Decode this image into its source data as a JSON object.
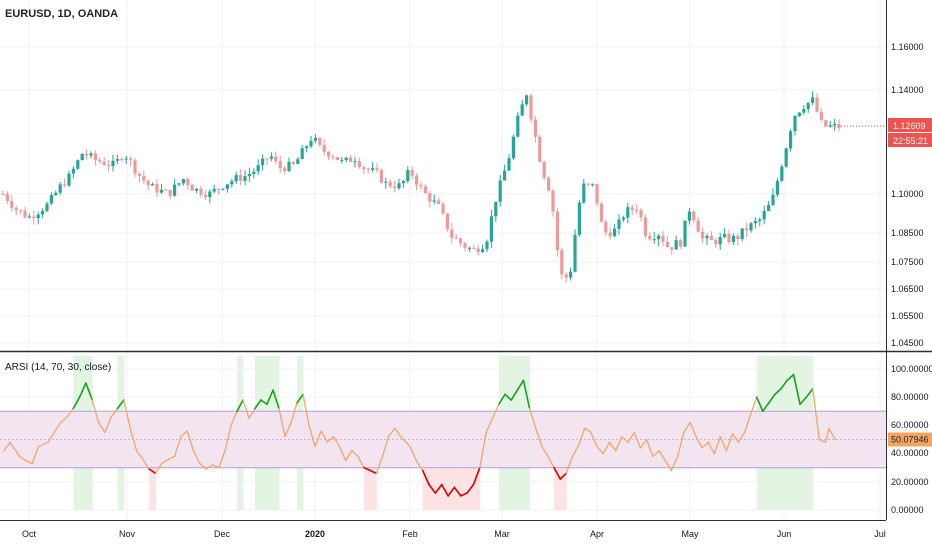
{
  "symbol_title": "EURUSD, 1D, OANDA",
  "indicator_title": "ARSI (14, 70, 30, close)",
  "colors": {
    "bull": "#26a69a",
    "bear": "#ef9a9a",
    "last_price_bg": "#ef5350",
    "arsi_line": "#f4a46b",
    "arsi_ob": "#17a317",
    "arsi_os": "#d50000",
    "arsi_value_bg": "#f4a460",
    "band_fill": "#f3e5ef",
    "ob_bg": "#e3f4e3",
    "os_bg": "#fde3e3"
  },
  "price_axis": {
    "labels": [
      "1.16000",
      "1.14000",
      "1.10000",
      "1.08500",
      "1.07500",
      "1.06500",
      "1.05500",
      "1.04500"
    ],
    "last_price": "1.12609",
    "countdown": "22:55:21"
  },
  "arsi_axis": {
    "labels": [
      "100.00000",
      "80.00000",
      "60.00000",
      "40.00000",
      "20.00000",
      "0.00000"
    ],
    "last_value": "50.07946"
  },
  "time_axis": [
    "Oct",
    "Nov",
    "Dec",
    "2020",
    "Feb",
    "Mar",
    "Apr",
    "May",
    "Jun",
    "Jul"
  ],
  "chart_data": [
    {
      "type": "candlestick",
      "title": "EURUSD, 1D, OANDA",
      "ylim": [
        1.043,
        1.166
      ],
      "y_ticks": [
        1.16,
        1.14,
        1.1,
        1.085,
        1.075,
        1.065,
        1.055,
        1.045
      ],
      "x_ticks": [
        "Oct",
        "Nov",
        "Dec",
        "2020",
        "Feb",
        "Mar",
        "Apr",
        "May",
        "Jun",
        "Jul"
      ],
      "close_path": [
        [
          "Sep 23",
          1.1
        ],
        [
          "Sep 27",
          1.094
        ],
        [
          "Oct 1",
          1.091
        ],
        [
          "Oct 7",
          1.096
        ],
        [
          "Oct 11",
          1.103
        ],
        [
          "Oct 14",
          1.107
        ],
        [
          "Oct 18",
          1.116
        ],
        [
          "Oct 22",
          1.113
        ],
        [
          "Oct 28",
          1.111
        ],
        [
          "Oct 31",
          1.116
        ],
        [
          "Nov 5",
          1.107
        ],
        [
          "Nov 8",
          1.103
        ],
        [
          "Nov 14",
          1.1
        ],
        [
          "Nov 19",
          1.106
        ],
        [
          "Nov 22",
          1.102
        ],
        [
          "Nov 27",
          1.1
        ],
        [
          "Dec 2",
          1.104
        ],
        [
          "Dec 6",
          1.106
        ],
        [
          "Dec 9",
          1.107
        ],
        [
          "Dec 13",
          1.11
        ],
        [
          "Dec 17",
          1.115
        ],
        [
          "Dec 20",
          1.11
        ],
        [
          "Dec 25",
          1.111
        ],
        [
          "Dec 31",
          1.122
        ],
        [
          "Jan 3",
          1.117
        ],
        [
          "Jan 7",
          1.115
        ],
        [
          "Jan 10",
          1.112
        ],
        [
          "Jan 14",
          1.114
        ],
        [
          "Jan 17",
          1.11
        ],
        [
          "Jan 21",
          1.108
        ],
        [
          "Jan 24",
          1.104
        ],
        [
          "Jan 29",
          1.103
        ],
        [
          "Feb 1",
          1.109
        ],
        [
          "Feb 5",
          1.101
        ],
        [
          "Feb 10",
          1.095
        ],
        [
          "Feb 14",
          1.084
        ],
        [
          "Feb 19",
          1.08
        ],
        [
          "Feb 21",
          1.079
        ],
        [
          "Feb 25",
          1.082
        ],
        [
          "Feb 28",
          1.098
        ],
        [
          "Mar 3",
          1.113
        ],
        [
          "Mar 6",
          1.128
        ],
        [
          "Mar 9",
          1.139
        ],
        [
          "Mar 11",
          1.127
        ],
        [
          "Mar 14",
          1.11
        ],
        [
          "Mar 17",
          1.1
        ],
        [
          "Mar 20",
          1.07
        ],
        [
          "Mar 23",
          1.069
        ],
        [
          "Mar 27",
          1.103
        ],
        [
          "Mar 31",
          1.103
        ],
        [
          "Apr 3",
          1.085
        ],
        [
          "Apr 7",
          1.086
        ],
        [
          "Apr 10",
          1.093
        ],
        [
          "Apr 14",
          1.095
        ],
        [
          "Apr 17",
          1.084
        ],
        [
          "Apr 21",
          1.085
        ],
        [
          "Apr 24",
          1.08
        ],
        [
          "Apr 28",
          1.082
        ],
        [
          "May 1",
          1.095
        ],
        [
          "May 5",
          1.083
        ],
        [
          "May 8",
          1.082
        ],
        [
          "May 12",
          1.083
        ],
        [
          "May 16",
          1.083
        ],
        [
          "May 20",
          1.087
        ],
        [
          "May 24",
          1.09
        ],
        [
          "May 28",
          1.097
        ],
        [
          "Jun 1",
          1.115
        ],
        [
          "Jun 4",
          1.13
        ],
        [
          "Jun 7",
          1.134
        ],
        [
          "Jun 10",
          1.136
        ],
        [
          "Jun 13",
          1.126
        ]
      ]
    },
    {
      "type": "line",
      "title": "ARSI (14, 70, 30, close)",
      "ylim": [
        -5,
        108
      ],
      "y_ticks": [
        100,
        80,
        60,
        40,
        20,
        0
      ],
      "bands": [
        70,
        50,
        30
      ],
      "overbought": 70,
      "oversold": 30,
      "series": [
        {
          "values": [
            [
              "Sep 23",
              42
            ],
            [
              "Sep 25",
              48
            ],
            [
              "Sep 28",
              38
            ],
            [
              "Sep 30",
              35
            ],
            [
              "Oct 2",
              33
            ],
            [
              "Oct 4",
              45
            ],
            [
              "Oct 7",
              48
            ],
            [
              "Oct 9",
              55
            ],
            [
              "Oct 11",
              62
            ],
            [
              "Oct 13",
              66
            ],
            [
              "Oct 15",
              72
            ],
            [
              "Oct 17",
              80
            ],
            [
              "Oct 19",
              90
            ],
            [
              "Oct 21",
              78
            ],
            [
              "Oct 23",
              62
            ],
            [
              "Oct 25",
              55
            ],
            [
              "Oct 27",
              66
            ],
            [
              "Oct 29",
              72
            ],
            [
              "Oct 31",
              78
            ],
            [
              "Nov 2",
              58
            ],
            [
              "Nov 4",
              42
            ],
            [
              "Nov 6",
              36
            ],
            [
              "Nov 8",
              29
            ],
            [
              "Nov 10",
              26
            ],
            [
              "Nov 12",
              33
            ],
            [
              "Nov 14",
              36
            ],
            [
              "Nov 16",
              38
            ],
            [
              "Nov 18",
              52
            ],
            [
              "Nov 20",
              56
            ],
            [
              "Nov 22",
              42
            ],
            [
              "Nov 24",
              33
            ],
            [
              "Nov 26",
              29
            ],
            [
              "Nov 28",
              32
            ],
            [
              "Nov 30",
              30
            ],
            [
              "Dec 2",
              42
            ],
            [
              "Dec 4",
              60
            ],
            [
              "Dec 6",
              70
            ],
            [
              "Dec 8",
              78
            ],
            [
              "Dec 10",
              65
            ],
            [
              "Dec 12",
              72
            ],
            [
              "Dec 14",
              78
            ],
            [
              "Dec 16",
              75
            ],
            [
              "Dec 18",
              85
            ],
            [
              "Dec 20",
              72
            ],
            [
              "Dec 22",
              52
            ],
            [
              "Dec 24",
              62
            ],
            [
              "Dec 26",
              76
            ],
            [
              "Dec 28",
              82
            ],
            [
              "Dec 30",
              60
            ],
            [
              "Jan 1",
              45
            ],
            [
              "Jan 3",
              56
            ],
            [
              "Jan 5",
              48
            ],
            [
              "Jan 7",
              52
            ],
            [
              "Jan 9",
              45
            ],
            [
              "Jan 11",
              35
            ],
            [
              "Jan 13",
              42
            ],
            [
              "Jan 15",
              38
            ],
            [
              "Jan 17",
              30
            ],
            [
              "Jan 19",
              28
            ],
            [
              "Jan 21",
              26
            ],
            [
              "Jan 23",
              38
            ],
            [
              "Jan 25",
              52
            ],
            [
              "Jan 27",
              58
            ],
            [
              "Jan 29",
              52
            ],
            [
              "Feb 1",
              45
            ],
            [
              "Feb 3",
              35
            ],
            [
              "Feb 5",
              28
            ],
            [
              "Feb 7",
              18
            ],
            [
              "Feb 9",
              12
            ],
            [
              "Feb 11",
              18
            ],
            [
              "Feb 13",
              10
            ],
            [
              "Feb 15",
              16
            ],
            [
              "Feb 17",
              10
            ],
            [
              "Feb 19",
              12
            ],
            [
              "Feb 21",
              18
            ],
            [
              "Feb 23",
              30
            ],
            [
              "Feb 25",
              55
            ],
            [
              "Feb 27",
              65
            ],
            [
              "Feb 29",
              75
            ],
            [
              "Mar 2",
              82
            ],
            [
              "Mar 4",
              78
            ],
            [
              "Mar 6",
              85
            ],
            [
              "Mar 8",
              92
            ],
            [
              "Mar 10",
              72
            ],
            [
              "Mar 12",
              58
            ],
            [
              "Mar 14",
              45
            ],
            [
              "Mar 16",
              38
            ],
            [
              "Mar 18",
              30
            ],
            [
              "Mar 20",
              22
            ],
            [
              "Mar 22",
              26
            ],
            [
              "Mar 24",
              38
            ],
            [
              "Mar 26",
              46
            ],
            [
              "Mar 28",
              58
            ],
            [
              "Mar 30",
              55
            ],
            [
              "Apr 1",
              45
            ],
            [
              "Apr 3",
              40
            ],
            [
              "Apr 5",
              48
            ],
            [
              "Apr 7",
              42
            ],
            [
              "Apr 9",
              52
            ],
            [
              "Apr 11",
              48
            ],
            [
              "Apr 13",
              55
            ],
            [
              "Apr 15",
              44
            ],
            [
              "Apr 17",
              50
            ],
            [
              "Apr 19",
              38
            ],
            [
              "Apr 21",
              42
            ],
            [
              "Apr 23",
              35
            ],
            [
              "Apr 25",
              28
            ],
            [
              "Apr 27",
              38
            ],
            [
              "Apr 29",
              55
            ],
            [
              "May 1",
              62
            ],
            [
              "May 3",
              52
            ],
            [
              "May 5",
              44
            ],
            [
              "May 7",
              48
            ],
            [
              "May 9",
              40
            ],
            [
              "May 11",
              52
            ],
            [
              "May 13",
              42
            ],
            [
              "May 15",
              54
            ],
            [
              "May 17",
              48
            ],
            [
              "May 19",
              55
            ],
            [
              "May 21",
              68
            ],
            [
              "May 23",
              80
            ],
            [
              "May 25",
              70
            ],
            [
              "May 27",
              76
            ],
            [
              "May 29",
              82
            ],
            [
              "May 31",
              86
            ],
            [
              "Jun 2",
              92
            ],
            [
              "Jun 4",
              96
            ],
            [
              "Jun 6",
              75
            ],
            [
              "Jun 8",
              80
            ],
            [
              "Jun 10",
              86
            ],
            [
              "Jun 12",
              50
            ],
            [
              "Jun 14",
              48
            ],
            [
              "Jun 15",
              58
            ],
            [
              "Jun 17",
              50
            ]
          ]
        }
      ]
    }
  ]
}
